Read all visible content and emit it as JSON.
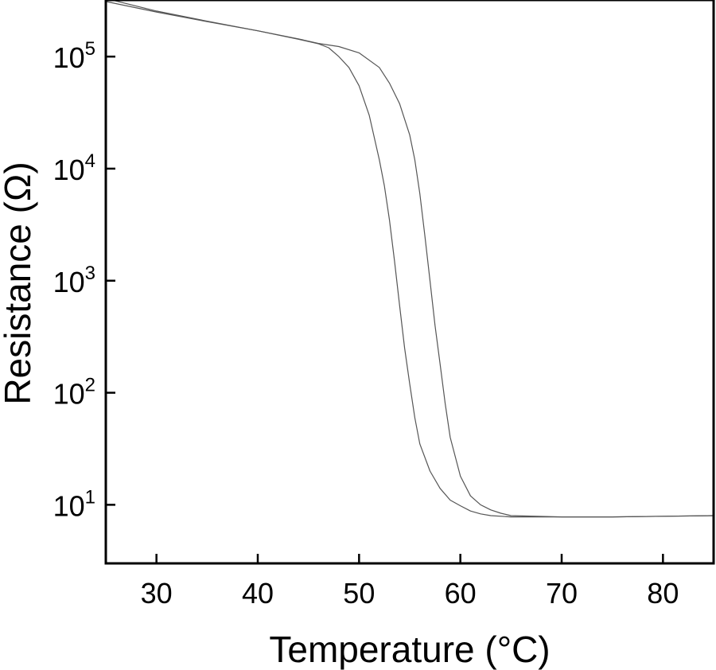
{
  "chart_data": {
    "type": "line",
    "xlabel": "Temperature (°C)",
    "ylabel": "Resistance (Ω)",
    "xlim": [
      25,
      85
    ],
    "ylim": [
      3.0,
      320000
    ],
    "y_scale": "log",
    "grid": false,
    "legend": "none",
    "x_ticks": [
      {
        "value": 30,
        "label": "30"
      },
      {
        "value": 40,
        "label": "40"
      },
      {
        "value": 50,
        "label": "50"
      },
      {
        "value": 60,
        "label": "60"
      },
      {
        "value": 70,
        "label": "70"
      },
      {
        "value": 80,
        "label": "80"
      }
    ],
    "y_ticks": [
      {
        "value": 10,
        "base": "10",
        "exp": "1"
      },
      {
        "value": 100,
        "base": "10",
        "exp": "2"
      },
      {
        "value": 1000,
        "base": "10",
        "exp": "3"
      },
      {
        "value": 10000,
        "base": "10",
        "exp": "4"
      },
      {
        "value": 100000,
        "base": "10",
        "exp": "5"
      }
    ],
    "line_color": "#555555",
    "series": [
      {
        "x": [
          25,
          30,
          35,
          40,
          44,
          46,
          47,
          48,
          49,
          50,
          51,
          52,
          52.5,
          53,
          53.5,
          54,
          54.5,
          55,
          55.5,
          56,
          57,
          58,
          59,
          60,
          61,
          62,
          63,
          65,
          70,
          75,
          80,
          85
        ],
        "y": [
          310000,
          250000,
          205000,
          170000,
          143000,
          130000,
          120000,
          100000,
          80000,
          55000,
          30000,
          12000,
          7000,
          3500,
          1500,
          600,
          250,
          120,
          60,
          35,
          20,
          14,
          11,
          9.8,
          8.8,
          8.3,
          8.0,
          7.8,
          7.8,
          7.8,
          7.9,
          8.0
        ]
      },
      {
        "x": [
          25,
          30,
          35,
          40,
          44,
          46,
          48,
          50,
          52,
          53,
          54,
          55,
          55.5,
          56,
          56.5,
          57,
          57.5,
          58,
          58.5,
          59,
          60,
          61,
          62,
          63,
          64,
          65,
          70,
          75,
          80,
          85
        ],
        "y": [
          330000,
          255000,
          207000,
          170000,
          144000,
          131000,
          123000,
          108000,
          80000,
          58000,
          38000,
          20000,
          12000,
          6000,
          2500,
          1000,
          400,
          180,
          80,
          40,
          18,
          12,
          10,
          9,
          8.4,
          8.0,
          7.8,
          7.8,
          7.9,
          8.0
        ]
      }
    ]
  }
}
